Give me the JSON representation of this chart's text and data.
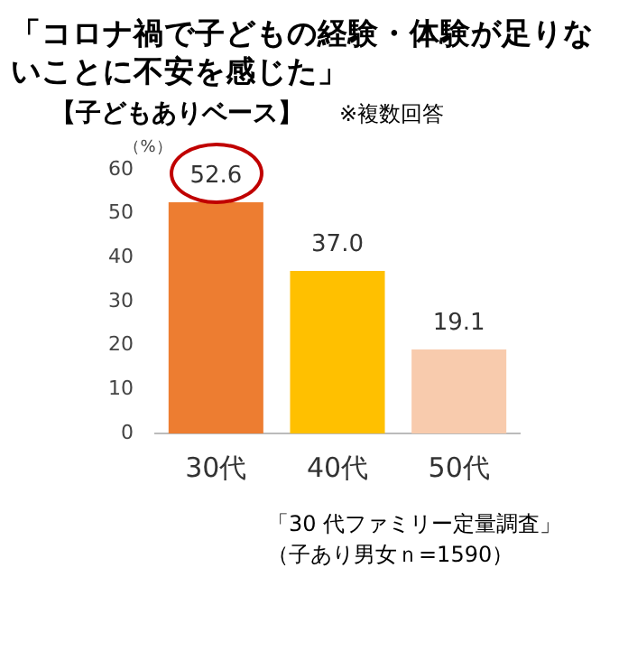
{
  "chart_data": {
    "type": "bar",
    "title": "「コロナ禍で子どもの経験・体験が足りないことに不安を感じた」",
    "subtitle": "【子どもありベース】",
    "ylabel": "（%）",
    "categories": [
      "30代",
      "40代",
      "50代"
    ],
    "values": [
      52.6,
      37.0,
      19.1
    ],
    "colors": [
      "#ed7d31",
      "#ffc000",
      "#f8cbad"
    ],
    "value_labels": [
      "52.6",
      "37.0",
      "19.1"
    ],
    "ylim": [
      0,
      60
    ],
    "yticks": [
      0,
      10,
      20,
      30,
      40,
      50,
      60
    ],
    "grid": false,
    "legend": false,
    "annotations": [
      "※複数回答",
      "「30 代ファミリー定量調査」",
      "（子あり男女ｎ=1590）"
    ]
  }
}
